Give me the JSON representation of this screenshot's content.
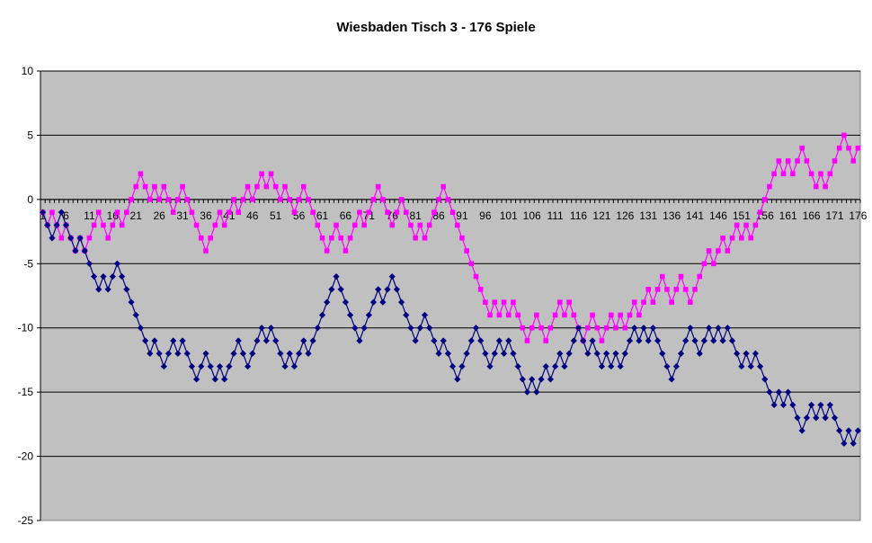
{
  "chart_data": {
    "type": "line",
    "title": "Wiesbaden Tisch 3 - 176 Spiele",
    "xlabel": "",
    "ylabel": "",
    "ylim": [
      -25,
      10
    ],
    "yticks": [
      10,
      5,
      0,
      -5,
      -10,
      -15,
      -20,
      -25
    ],
    "xticks": [
      1,
      6,
      11,
      16,
      21,
      26,
      31,
      36,
      41,
      46,
      51,
      56,
      61,
      66,
      71,
      76,
      81,
      86,
      91,
      96,
      101,
      106,
      111,
      116,
      121,
      126,
      131,
      136,
      141,
      146,
      151,
      156,
      161,
      166,
      171,
      176
    ],
    "x_start": 1,
    "grid": true,
    "legend": "none",
    "plot_background": "#c0c0c0",
    "series": [
      {
        "color": "#ff00ff",
        "marker": "square",
        "values": [
          -1,
          -2,
          -1,
          -2,
          -3,
          -2,
          -3,
          -4,
          -3,
          -4,
          -3,
          -2,
          -1,
          -2,
          -3,
          -2,
          -1,
          -2,
          -1,
          0,
          1,
          2,
          1,
          0,
          1,
          0,
          1,
          0,
          -1,
          0,
          1,
          0,
          -1,
          -2,
          -3,
          -4,
          -3,
          -2,
          -1,
          -2,
          -1,
          0,
          -1,
          0,
          1,
          0,
          1,
          2,
          1,
          2,
          1,
          0,
          1,
          0,
          -1,
          0,
          1,
          0,
          -1,
          -2,
          -3,
          -4,
          -3,
          -2,
          -3,
          -4,
          -3,
          -2,
          -1,
          -2,
          -1,
          0,
          1,
          0,
          -1,
          -2,
          -1,
          0,
          -1,
          -2,
          -3,
          -2,
          -3,
          -2,
          -1,
          0,
          1,
          0,
          -1,
          -2,
          -3,
          -4,
          -5,
          -6,
          -7,
          -8,
          -9,
          -8,
          -9,
          -8,
          -9,
          -8,
          -9,
          -10,
          -11,
          -10,
          -9,
          -10,
          -11,
          -10,
          -9,
          -8,
          -9,
          -8,
          -9,
          -10,
          -11,
          -10,
          -9,
          -10,
          -11,
          -10,
          -9,
          -10,
          -9,
          -10,
          -9,
          -8,
          -9,
          -8,
          -7,
          -8,
          -7,
          -6,
          -7,
          -8,
          -7,
          -6,
          -7,
          -8,
          -7,
          -6,
          -5,
          -4,
          -5,
          -4,
          -3,
          -4,
          -3,
          -2,
          -3,
          -2,
          -3,
          -2,
          -1,
          0,
          1,
          2,
          3,
          2,
          3,
          2,
          3,
          4,
          3,
          2,
          1,
          2,
          1,
          2,
          3,
          4,
          5,
          4,
          3,
          4
        ]
      },
      {
        "color": "#000080",
        "marker": "diamond",
        "values": [
          -1,
          -2,
          -3,
          -2,
          -1,
          -2,
          -3,
          -4,
          -3,
          -4,
          -5,
          -6,
          -7,
          -6,
          -7,
          -6,
          -5,
          -6,
          -7,
          -8,
          -9,
          -10,
          -11,
          -12,
          -11,
          -12,
          -13,
          -12,
          -11,
          -12,
          -11,
          -12,
          -13,
          -14,
          -13,
          -12,
          -13,
          -14,
          -13,
          -14,
          -13,
          -12,
          -11,
          -12,
          -13,
          -12,
          -11,
          -10,
          -11,
          -10,
          -11,
          -12,
          -13,
          -12,
          -13,
          -12,
          -11,
          -12,
          -11,
          -10,
          -9,
          -8,
          -7,
          -6,
          -7,
          -8,
          -9,
          -10,
          -11,
          -10,
          -9,
          -8,
          -7,
          -8,
          -7,
          -6,
          -7,
          -8,
          -9,
          -10,
          -11,
          -10,
          -9,
          -10,
          -11,
          -12,
          -11,
          -12,
          -13,
          -14,
          -13,
          -12,
          -11,
          -10,
          -11,
          -12,
          -13,
          -12,
          -11,
          -12,
          -11,
          -12,
          -13,
          -14,
          -15,
          -14,
          -15,
          -14,
          -13,
          -14,
          -13,
          -12,
          -13,
          -12,
          -11,
          -10,
          -11,
          -12,
          -11,
          -12,
          -13,
          -12,
          -13,
          -12,
          -13,
          -12,
          -11,
          -10,
          -11,
          -10,
          -11,
          -10,
          -11,
          -12,
          -13,
          -14,
          -13,
          -12,
          -11,
          -10,
          -11,
          -12,
          -11,
          -10,
          -11,
          -10,
          -11,
          -10,
          -11,
          -12,
          -13,
          -12,
          -13,
          -12,
          -13,
          -14,
          -15,
          -16,
          -15,
          -16,
          -15,
          -16,
          -17,
          -18,
          -17,
          -16,
          -17,
          -16,
          -17,
          -16,
          -17,
          -18,
          -19,
          -18,
          -19,
          -18
        ]
      }
    ]
  }
}
